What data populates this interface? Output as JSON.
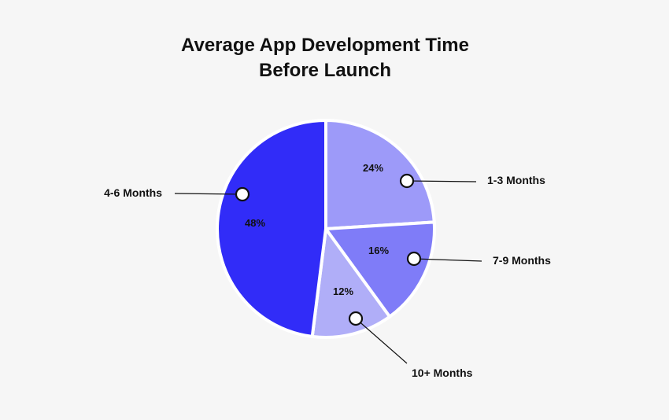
{
  "chart_data": {
    "type": "pie",
    "title_line1": "Average App Development Time",
    "title_line2": "Before Launch",
    "slices": [
      {
        "label": "1-3 Months",
        "value": 24,
        "value_label": "24%",
        "color": "#9d9af9"
      },
      {
        "label": "7-9 Months",
        "value": 16,
        "value_label": "16%",
        "color": "#7f7cf8"
      },
      {
        "label": "10+ Months",
        "value": 12,
        "value_label": "12%",
        "color": "#b0aef8"
      },
      {
        "label": "4-6 Months",
        "value": 48,
        "value_label": "48%",
        "color": "#312cf8"
      }
    ],
    "legend": "callout labels"
  }
}
